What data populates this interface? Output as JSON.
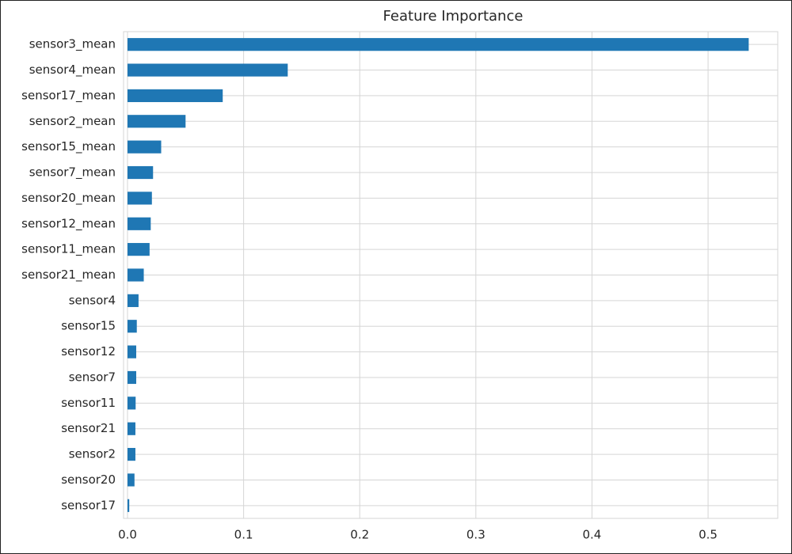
{
  "chart_data": {
    "type": "barh",
    "title": "Feature Importance",
    "categories": [
      "sensor3_mean",
      "sensor4_mean",
      "sensor17_mean",
      "sensor2_mean",
      "sensor15_mean",
      "sensor7_mean",
      "sensor20_mean",
      "sensor12_mean",
      "sensor11_mean",
      "sensor21_mean",
      "sensor4",
      "sensor15",
      "sensor12",
      "sensor7",
      "sensor11",
      "sensor21",
      "sensor2",
      "sensor20",
      "sensor17"
    ],
    "values": [
      0.535,
      0.138,
      0.082,
      0.05,
      0.029,
      0.022,
      0.021,
      0.02,
      0.019,
      0.014,
      0.0095,
      0.008,
      0.0075,
      0.0075,
      0.007,
      0.0068,
      0.0068,
      0.006,
      0.0015
    ],
    "color": "#1f77b4",
    "xlim": [
      0,
      0.56
    ],
    "xticks": [
      {
        "value": 0,
        "label": "0.0"
      },
      0.1,
      0.2,
      0.3,
      0.4,
      0.5
    ],
    "grid": true
  }
}
